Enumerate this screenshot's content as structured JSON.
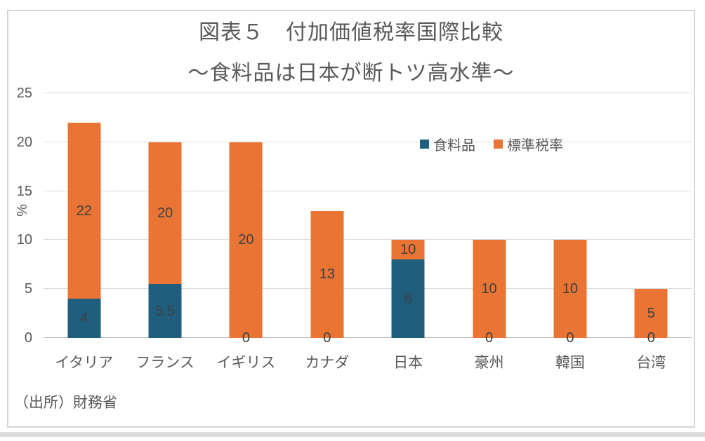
{
  "title": {
    "line1": "図表５　付加価値税率国際比較",
    "line2": "～食料品は日本が断トツ高水準～"
  },
  "legend": [
    {
      "label": "食料品",
      "color": "#205E7D"
    },
    {
      "label": "標準税率",
      "color": "#E97434"
    }
  ],
  "y_axis": {
    "label": "%",
    "ticks": [
      0,
      5,
      10,
      15,
      20,
      25
    ]
  },
  "source": "（出所）財務省",
  "chart_data": {
    "type": "bar",
    "subtype": "overlapped-columns",
    "title": "図表５　付加価値税率国際比較 ～食料品は日本が断トツ高水準～",
    "categories": [
      "イタリア",
      "フランス",
      "イギリス",
      "カナダ",
      "日本",
      "豪州",
      "韓国",
      "台湾"
    ],
    "series": [
      {
        "name": "標準税率",
        "color": "#E97434",
        "values": [
          22,
          20,
          20,
          13,
          10,
          10,
          10,
          5
        ]
      },
      {
        "name": "食料品",
        "color": "#205E7D",
        "values": [
          4,
          5.5,
          0,
          0,
          8,
          0,
          0,
          0
        ]
      }
    ],
    "data_labels": true,
    "xlabel": "",
    "ylabel": "%",
    "ylim": [
      0,
      25
    ],
    "ytick_step": 5,
    "grid": true,
    "legend_position": "inside-top-right",
    "source": "（出所）財務省"
  }
}
